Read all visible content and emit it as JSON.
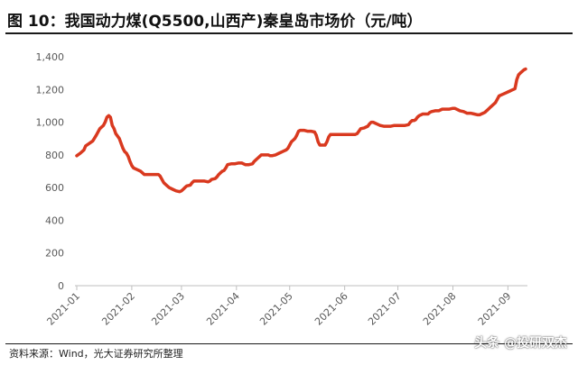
{
  "page": {
    "title": "图 10：我国动力煤(Q5500,山西产)秦皇岛市场价（元/吨）",
    "source": "资料来源：Wind，光大证券研究所整理",
    "watermark": "头条 @投研双杰"
  },
  "chart_data": {
    "type": "line",
    "title": "图 10：我国动力煤(Q5500,山西产)秦皇岛市场价（元/吨）",
    "xlabel": "",
    "ylabel": "",
    "ylim": [
      0,
      1400
    ],
    "yticks": [
      0,
      200,
      400,
      600,
      800,
      1000,
      1200,
      1400
    ],
    "ytick_labels": [
      "0",
      "200",
      "400",
      "600",
      "800",
      "1,000",
      "1,200",
      "1,400"
    ],
    "xlim": [
      0,
      254
    ],
    "xticks": [
      0,
      31,
      59,
      90,
      120,
      151,
      181,
      212,
      243
    ],
    "xtick_labels": [
      "2021-01",
      "2021-02",
      "2021-03",
      "2021-04",
      "2021-05",
      "2021-06",
      "2021-07",
      "2021-08",
      "2021-09"
    ],
    "grid": false,
    "color": "#d9391f",
    "series": [
      {
        "values": [
          [
            0,
            795
          ],
          [
            2,
            810
          ],
          [
            4,
            830
          ],
          [
            5,
            855
          ],
          [
            7,
            870
          ],
          [
            9,
            885
          ],
          [
            11,
            920
          ],
          [
            13,
            960
          ],
          [
            15,
            980
          ],
          [
            16,
            1000
          ],
          [
            17,
            1030
          ],
          [
            18,
            1040
          ],
          [
            19,
            1030
          ],
          [
            20,
            980
          ],
          [
            21,
            960
          ],
          [
            22,
            930
          ],
          [
            24,
            900
          ],
          [
            25,
            870
          ],
          [
            26,
            840
          ],
          [
            27,
            820
          ],
          [
            28,
            810
          ],
          [
            29,
            790
          ],
          [
            30,
            760
          ],
          [
            31,
            735
          ],
          [
            32,
            720
          ],
          [
            34,
            710
          ],
          [
            36,
            700
          ],
          [
            37,
            690
          ],
          [
            38,
            680
          ],
          [
            40,
            680
          ],
          [
            42,
            680
          ],
          [
            44,
            680
          ],
          [
            46,
            680
          ],
          [
            47,
            670
          ],
          [
            48,
            650
          ],
          [
            49,
            630
          ],
          [
            50,
            620
          ],
          [
            51,
            610
          ],
          [
            52,
            600
          ],
          [
            54,
            590
          ],
          [
            56,
            580
          ],
          [
            58,
            575
          ],
          [
            59,
            580
          ],
          [
            60,
            590
          ],
          [
            61,
            600
          ],
          [
            62,
            610
          ],
          [
            64,
            615
          ],
          [
            65,
            630
          ],
          [
            66,
            640
          ],
          [
            68,
            640
          ],
          [
            70,
            640
          ],
          [
            72,
            640
          ],
          [
            74,
            635
          ],
          [
            75,
            640
          ],
          [
            76,
            650
          ],
          [
            78,
            655
          ],
          [
            79,
            665
          ],
          [
            80,
            680
          ],
          [
            81,
            690
          ],
          [
            82,
            700
          ],
          [
            83,
            705
          ],
          [
            84,
            720
          ],
          [
            85,
            740
          ],
          [
            87,
            745
          ],
          [
            89,
            745
          ],
          [
            91,
            750
          ],
          [
            93,
            750
          ],
          [
            94,
            745
          ],
          [
            95,
            740
          ],
          [
            97,
            740
          ],
          [
            99,
            745
          ],
          [
            100,
            760
          ],
          [
            101,
            770
          ],
          [
            102,
            780
          ],
          [
            103,
            790
          ],
          [
            104,
            800
          ],
          [
            106,
            800
          ],
          [
            108,
            800
          ],
          [
            109,
            795
          ],
          [
            110,
            795
          ],
          [
            112,
            800
          ],
          [
            114,
            810
          ],
          [
            116,
            820
          ],
          [
            118,
            830
          ],
          [
            119,
            840
          ],
          [
            120,
            860
          ],
          [
            121,
            880
          ],
          [
            122,
            890
          ],
          [
            123,
            900
          ],
          [
            124,
            920
          ],
          [
            125,
            945
          ],
          [
            126,
            950
          ],
          [
            128,
            950
          ],
          [
            130,
            945
          ],
          [
            131,
            945
          ],
          [
            132,
            945
          ],
          [
            134,
            940
          ],
          [
            135,
            920
          ],
          [
            136,
            880
          ],
          [
            137,
            860
          ],
          [
            138,
            860
          ],
          [
            140,
            860
          ],
          [
            141,
            880
          ],
          [
            142,
            910
          ],
          [
            143,
            925
          ],
          [
            145,
            925
          ],
          [
            147,
            925
          ],
          [
            149,
            925
          ],
          [
            151,
            925
          ],
          [
            153,
            925
          ],
          [
            155,
            925
          ],
          [
            157,
            925
          ],
          [
            158,
            930
          ],
          [
            159,
            945
          ],
          [
            160,
            960
          ],
          [
            162,
            965
          ],
          [
            163,
            970
          ],
          [
            164,
            975
          ],
          [
            165,
            990
          ],
          [
            166,
            1000
          ],
          [
            167,
            1000
          ],
          [
            168,
            995
          ],
          [
            170,
            985
          ],
          [
            171,
            980
          ],
          [
            173,
            975
          ],
          [
            175,
            975
          ],
          [
            177,
            975
          ],
          [
            179,
            980
          ],
          [
            181,
            980
          ],
          [
            183,
            980
          ],
          [
            185,
            980
          ],
          [
            187,
            985
          ],
          [
            188,
            1000
          ],
          [
            189,
            1010
          ],
          [
            190,
            1010
          ],
          [
            191,
            1015
          ],
          [
            192,
            1030
          ],
          [
            193,
            1040
          ],
          [
            194,
            1045
          ],
          [
            195,
            1050
          ],
          [
            196,
            1050
          ],
          [
            198,
            1050
          ],
          [
            199,
            1060
          ],
          [
            200,
            1065
          ],
          [
            202,
            1070
          ],
          [
            204,
            1070
          ],
          [
            205,
            1075
          ],
          [
            206,
            1080
          ],
          [
            208,
            1080
          ],
          [
            210,
            1080
          ],
          [
            212,
            1085
          ],
          [
            213,
            1085
          ],
          [
            214,
            1080
          ],
          [
            215,
            1075
          ],
          [
            216,
            1070
          ],
          [
            218,
            1065
          ],
          [
            219,
            1060
          ],
          [
            220,
            1055
          ],
          [
            222,
            1055
          ],
          [
            224,
            1050
          ],
          [
            226,
            1045
          ],
          [
            227,
            1045
          ],
          [
            228,
            1050
          ],
          [
            229,
            1055
          ],
          [
            230,
            1060
          ],
          [
            231,
            1070
          ],
          [
            232,
            1080
          ],
          [
            233,
            1090
          ],
          [
            234,
            1100
          ],
          [
            235,
            1110
          ],
          [
            236,
            1120
          ],
          [
            237,
            1140
          ],
          [
            238,
            1160
          ],
          [
            239,
            1165
          ],
          [
            240,
            1170
          ],
          [
            241,
            1175
          ],
          [
            242,
            1180
          ],
          [
            243,
            1185
          ],
          [
            244,
            1190
          ],
          [
            245,
            1195
          ],
          [
            246,
            1200
          ],
          [
            247,
            1205
          ],
          [
            248,
            1260
          ],
          [
            249,
            1290
          ],
          [
            250,
            1300
          ],
          [
            251,
            1310
          ],
          [
            252,
            1320
          ],
          [
            253,
            1325
          ]
        ]
      }
    ]
  }
}
